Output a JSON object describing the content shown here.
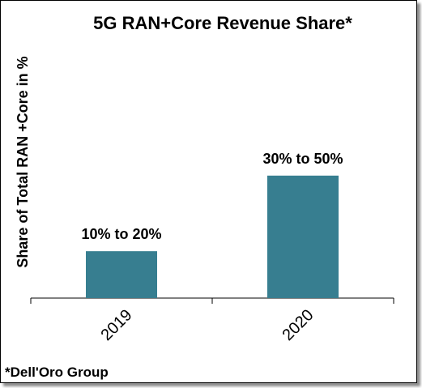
{
  "chart_data": {
    "type": "bar",
    "title": "5G RAN+Core Revenue Share*",
    "ylabel": "Share of Total RAN +Core in %",
    "xlabel": "",
    "categories": [
      "2019",
      "2020"
    ],
    "ranges": [
      [
        10,
        20
      ],
      [
        30,
        50
      ]
    ],
    "data_labels": [
      "10% to 20%",
      "30% to 50%"
    ],
    "ylim": [
      0,
      60
    ],
    "grid": false,
    "legend": "none"
  },
  "colors": {
    "bar": "#377E90",
    "text": "#000000",
    "axis": "#000000"
  },
  "footnote": "*Dell'Oro Group"
}
